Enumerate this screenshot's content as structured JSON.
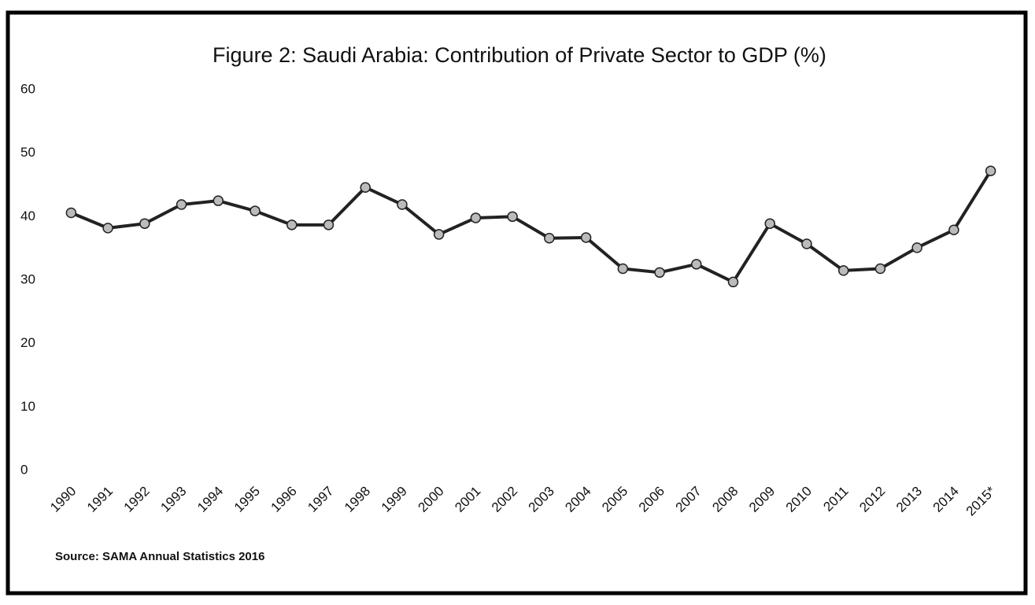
{
  "chart_data": {
    "type": "line",
    "title": "Figure 2: Saudi Arabia: Contribution of Private Sector to GDP (%)",
    "source": "Source: SAMA Annual Statistics 2016",
    "categories": [
      "1990",
      "1991",
      "1992",
      "1993",
      "1994",
      "1995",
      "1996",
      "1997",
      "1998",
      "1999",
      "2000",
      "2001",
      "2002",
      "2003",
      "2004",
      "2005",
      "2006",
      "2007",
      "2008",
      "2009",
      "2010",
      "2011",
      "2012",
      "2013",
      "2014",
      "2015*"
    ],
    "series": [
      {
        "color": "#222222",
        "values": [
          40.6,
          38.2,
          38.9,
          41.9,
          42.5,
          40.9,
          38.7,
          38.7,
          44.6,
          41.9,
          37.2,
          39.8,
          40.0,
          36.6,
          36.7,
          31.8,
          31.2,
          32.5,
          29.7,
          38.9,
          35.7,
          31.5,
          31.8,
          35.1,
          37.9,
          47.2
        ]
      }
    ],
    "marker_color": "#bbbbbb",
    "ylim": [
      0,
      60
    ],
    "yticks": [
      0,
      10,
      20,
      30,
      40,
      50,
      60
    ],
    "grid": false
  }
}
